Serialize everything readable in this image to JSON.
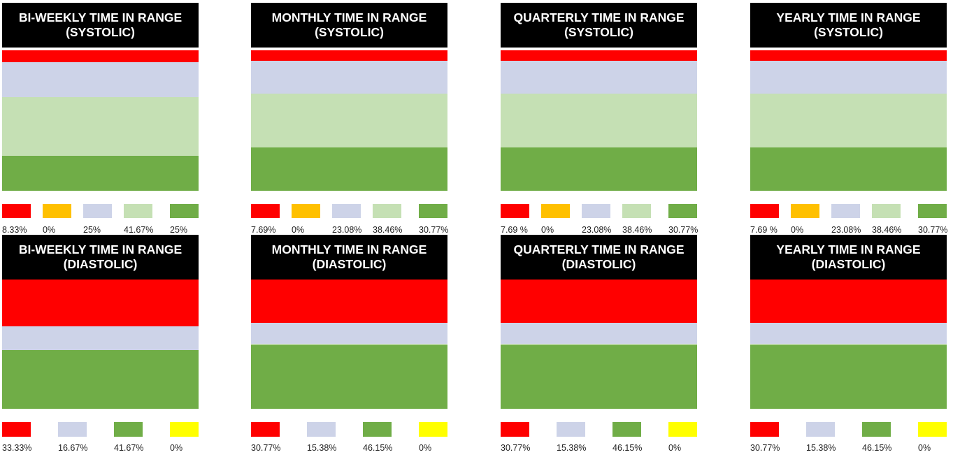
{
  "chart_data": [
    {
      "type": "stacked-bar",
      "title": "BI-WEEKLY TIME IN RANGE (SYSTOLIC)",
      "colors": [
        "#ff0000",
        "#ffc000",
        "#cdd3e8",
        "#c5e0b4",
        "#70ad47"
      ],
      "values": [
        8.33,
        0,
        25,
        41.67,
        25
      ],
      "labels": [
        "8.33%",
        "0%",
        "25%",
        "41.67%",
        "25%"
      ]
    },
    {
      "type": "stacked-bar",
      "title": "MONTHLY TIME IN RANGE (SYSTOLIC)",
      "colors": [
        "#ff0000",
        "#ffc000",
        "#cdd3e8",
        "#c5e0b4",
        "#70ad47"
      ],
      "values": [
        7.69,
        0,
        23.08,
        38.46,
        30.77
      ],
      "labels": [
        "7.69%",
        "0%",
        "23.08%",
        "38.46%",
        "30.77%"
      ]
    },
    {
      "type": "stacked-bar",
      "title": "QUARTERLY TIME IN RANGE (SYSTOLIC)",
      "colors": [
        "#ff0000",
        "#ffc000",
        "#cdd3e8",
        "#c5e0b4",
        "#70ad47"
      ],
      "values": [
        7.69,
        0,
        23.08,
        38.46,
        30.77
      ],
      "labels": [
        "7.69 %",
        "0%",
        "23.08%",
        "38.46%",
        "30.77%"
      ]
    },
    {
      "type": "stacked-bar",
      "title": "YEARLY TIME IN RANGE (SYSTOLIC)",
      "colors": [
        "#ff0000",
        "#ffc000",
        "#cdd3e8",
        "#c5e0b4",
        "#70ad47"
      ],
      "values": [
        7.69,
        0,
        23.08,
        38.46,
        30.77
      ],
      "labels": [
        "7.69 %",
        "0%",
        "23.08%",
        "38.46%",
        "30.77%"
      ]
    },
    {
      "type": "stacked-bar",
      "title": "BI-WEEKLY TIME IN RANGE (DIASTOLIC)",
      "colors": [
        "#ff0000",
        "#cdd3e8",
        "#70ad47",
        "#ffff00"
      ],
      "values": [
        33.33,
        16.67,
        41.67,
        0
      ],
      "labels": [
        "33.33%",
        "16.67%",
        "41.67%",
        "0%"
      ]
    },
    {
      "type": "stacked-bar",
      "title": "MONTHLY TIME IN RANGE (DIASTOLIC)",
      "colors": [
        "#ff0000",
        "#cdd3e8",
        "#70ad47",
        "#ffff00"
      ],
      "values": [
        30.77,
        15.38,
        46.15,
        0
      ],
      "labels": [
        "30.77%",
        "15.38%",
        "46.15%",
        "0%"
      ]
    },
    {
      "type": "stacked-bar",
      "title": "QUARTERLY TIME IN RANGE (DIASTOLIC)",
      "colors": [
        "#ff0000",
        "#cdd3e8",
        "#70ad47",
        "#ffff00"
      ],
      "values": [
        30.77,
        15.38,
        46.15,
        0
      ],
      "labels": [
        "30.77%",
        "15.38%",
        "46.15%",
        "0%"
      ]
    },
    {
      "type": "stacked-bar",
      "title": "YEARLY TIME IN RANGE (DIASTOLIC)",
      "colors": [
        "#ff0000",
        "#cdd3e8",
        "#70ad47",
        "#ffff00"
      ],
      "values": [
        30.77,
        15.38,
        46.15,
        0
      ],
      "labels": [
        "30.77%",
        "15.38%",
        "46.15%",
        "0%"
      ]
    }
  ]
}
